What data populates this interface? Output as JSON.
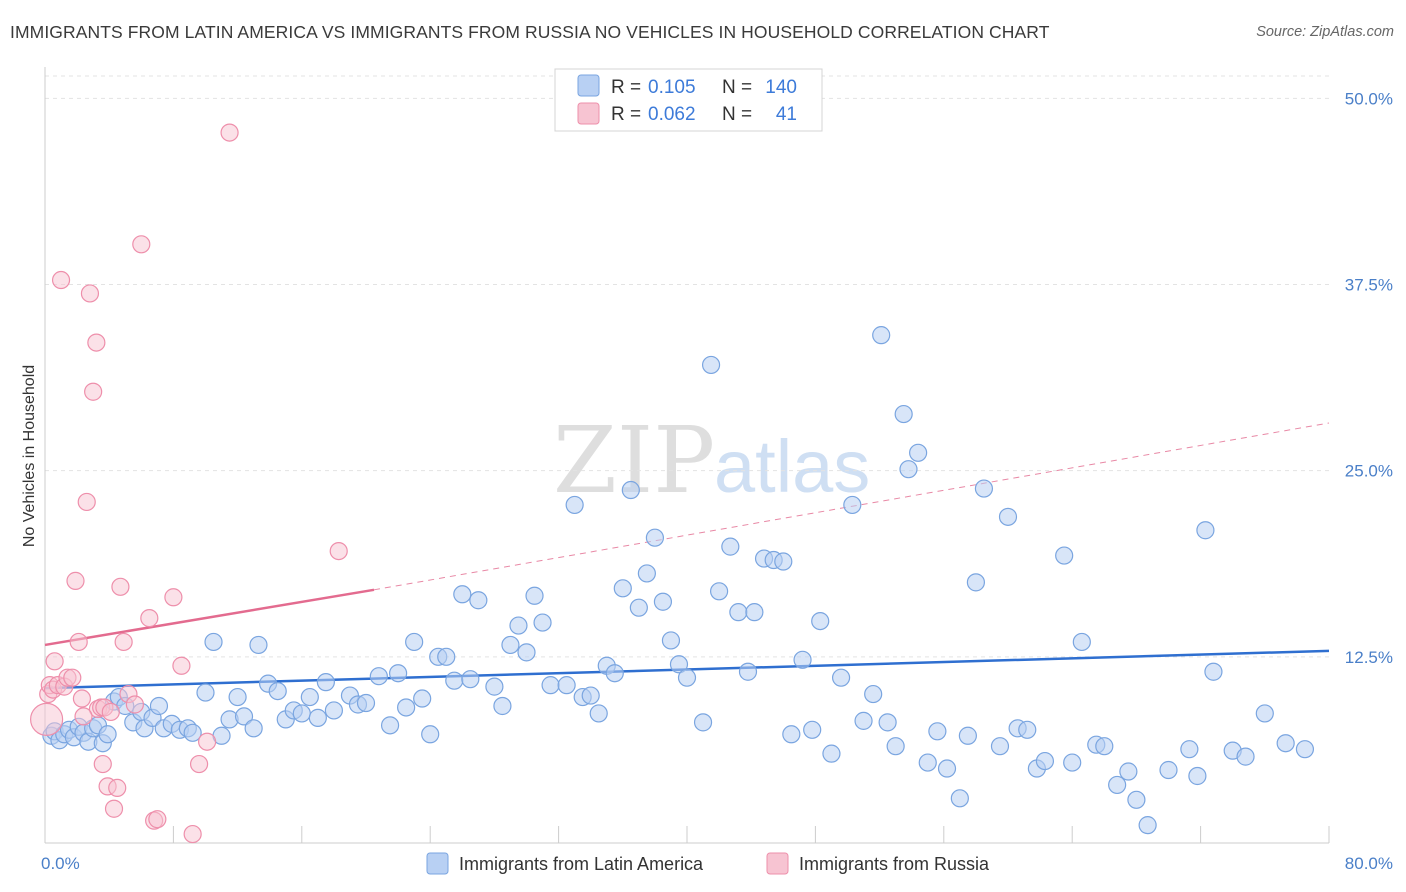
{
  "title": "IMMIGRANTS FROM LATIN AMERICA VS IMMIGRANTS FROM RUSSIA NO VEHICLES IN HOUSEHOLD CORRELATION CHART",
  "source": "Source: ZipAtlas.com",
  "watermark": {
    "zip": "ZIP",
    "atlas": "atlas"
  },
  "colors": {
    "blue_fill": "#b8d0f3",
    "blue_stroke": "#7aa5e0",
    "blue_line": "#2f6fd0",
    "pink_fill": "#f7c4d2",
    "pink_stroke": "#ee8fab",
    "pink_line": "#e36b8f",
    "grid": "#e3e3e3",
    "tick_text": "#4a7fc8"
  },
  "legend": {
    "rows": [
      {
        "r_label": "R =",
        "r_value": "0.105",
        "n_label": "N =",
        "n_value": "140"
      },
      {
        "r_label": "R =",
        "r_value": "0.062",
        "n_label": "N =",
        "n_value": "41"
      }
    ]
  },
  "chart_data": {
    "type": "scatter",
    "title": "IMMIGRANTS FROM LATIN AMERICA VS IMMIGRANTS FROM RUSSIA NO VEHICLES IN HOUSEHOLD CORRELATION CHART",
    "xlabel": "",
    "ylabel": "No Vehicles in Household",
    "xlim": [
      0,
      80
    ],
    "ylim": [
      0,
      51.5
    ],
    "x_tick_labels": [
      "0.0%",
      "80.0%"
    ],
    "y_tick_labels": [
      "12.5%",
      "25.0%",
      "37.5%",
      "50.0%"
    ],
    "y_ticks": [
      12.5,
      25.0,
      37.5,
      50.0
    ],
    "grid": true,
    "legend_position": "top-center",
    "series": [
      {
        "name": "Immigrants from Latin America",
        "color": "#7aa5e0",
        "R": 0.105,
        "N": 140,
        "trend": {
          "x": [
            0,
            80
          ],
          "y": [
            10.4,
            12.9
          ],
          "dashed_extension": false
        },
        "points": [
          [
            0.4,
            7.2
          ],
          [
            0.6,
            7.5
          ],
          [
            0.9,
            6.9
          ],
          [
            1.2,
            7.3
          ],
          [
            1.5,
            7.6
          ],
          [
            1.8,
            7.1
          ],
          [
            2.1,
            7.8
          ],
          [
            2.4,
            7.4
          ],
          [
            2.7,
            6.8
          ],
          [
            3.0,
            7.7
          ],
          [
            3.3,
            7.9
          ],
          [
            3.6,
            6.7
          ],
          [
            3.9,
            7.3
          ],
          [
            4.3,
            9.5
          ],
          [
            4.6,
            9.8
          ],
          [
            5.0,
            9.2
          ],
          [
            5.5,
            8.1
          ],
          [
            6.0,
            8.8
          ],
          [
            6.2,
            7.7
          ],
          [
            6.7,
            8.4
          ],
          [
            7.1,
            9.2
          ],
          [
            7.4,
            7.7
          ],
          [
            7.9,
            8.0
          ],
          [
            8.4,
            7.6
          ],
          [
            8.9,
            7.7
          ],
          [
            9.2,
            7.4
          ],
          [
            10.0,
            10.1
          ],
          [
            10.5,
            13.5
          ],
          [
            11.0,
            7.2
          ],
          [
            11.5,
            8.3
          ],
          [
            12.0,
            9.8
          ],
          [
            12.4,
            8.5
          ],
          [
            13.0,
            7.7
          ],
          [
            13.3,
            13.3
          ],
          [
            13.9,
            10.7
          ],
          [
            14.5,
            10.2
          ],
          [
            15.0,
            8.3
          ],
          [
            15.5,
            8.9
          ],
          [
            16.0,
            8.7
          ],
          [
            16.5,
            9.8
          ],
          [
            17.0,
            8.4
          ],
          [
            17.5,
            10.8
          ],
          [
            18.0,
            8.9
          ],
          [
            19.0,
            9.9
          ],
          [
            19.5,
            9.3
          ],
          [
            20.0,
            9.4
          ],
          [
            20.8,
            11.2
          ],
          [
            21.5,
            7.9
          ],
          [
            22.0,
            11.4
          ],
          [
            22.5,
            9.1
          ],
          [
            23.0,
            13.5
          ],
          [
            23.5,
            9.7
          ],
          [
            24.0,
            7.3
          ],
          [
            24.5,
            12.5
          ],
          [
            25.0,
            12.5
          ],
          [
            25.5,
            10.9
          ],
          [
            26.0,
            16.7
          ],
          [
            26.5,
            11.0
          ],
          [
            27.0,
            16.3
          ],
          [
            28.0,
            10.5
          ],
          [
            28.5,
            9.2
          ],
          [
            29.0,
            13.3
          ],
          [
            29.5,
            14.6
          ],
          [
            30.0,
            12.8
          ],
          [
            30.5,
            16.6
          ],
          [
            31.0,
            14.8
          ],
          [
            31.5,
            10.6
          ],
          [
            32.5,
            10.6
          ],
          [
            33.0,
            22.7
          ],
          [
            33.5,
            9.8
          ],
          [
            34.0,
            9.9
          ],
          [
            34.5,
            8.7
          ],
          [
            35.0,
            11.9
          ],
          [
            35.5,
            11.4
          ],
          [
            36.0,
            17.1
          ],
          [
            36.5,
            23.7
          ],
          [
            37.0,
            15.8
          ],
          [
            37.5,
            18.1
          ],
          [
            38.0,
            20.5
          ],
          [
            38.5,
            16.2
          ],
          [
            39.0,
            13.6
          ],
          [
            39.5,
            12.0
          ],
          [
            40.0,
            11.1
          ],
          [
            41.0,
            8.1
          ],
          [
            41.5,
            32.1
          ],
          [
            42.0,
            16.9
          ],
          [
            42.7,
            19.9
          ],
          [
            43.2,
            15.5
          ],
          [
            43.8,
            11.5
          ],
          [
            44.2,
            15.5
          ],
          [
            44.8,
            19.1
          ],
          [
            45.4,
            19.0
          ],
          [
            46.0,
            18.9
          ],
          [
            46.5,
            7.3
          ],
          [
            47.2,
            12.3
          ],
          [
            47.8,
            7.6
          ],
          [
            48.3,
            14.9
          ],
          [
            49.0,
            6.0
          ],
          [
            49.6,
            11.1
          ],
          [
            50.3,
            22.7
          ],
          [
            51.0,
            8.2
          ],
          [
            51.6,
            10.0
          ],
          [
            52.1,
            34.1
          ],
          [
            52.5,
            8.1
          ],
          [
            53.0,
            6.5
          ],
          [
            53.5,
            28.8
          ],
          [
            53.8,
            25.1
          ],
          [
            54.4,
            26.2
          ],
          [
            55.0,
            5.4
          ],
          [
            55.6,
            7.5
          ],
          [
            56.2,
            5.0
          ],
          [
            57.0,
            3.0
          ],
          [
            57.5,
            7.2
          ],
          [
            58.0,
            17.5
          ],
          [
            58.5,
            23.8
          ],
          [
            59.5,
            6.5
          ],
          [
            60.0,
            21.9
          ],
          [
            60.6,
            7.7
          ],
          [
            61.2,
            7.6
          ],
          [
            61.8,
            5.0
          ],
          [
            62.3,
            5.5
          ],
          [
            63.5,
            19.3
          ],
          [
            64.0,
            5.4
          ],
          [
            64.6,
            13.5
          ],
          [
            65.5,
            6.6
          ],
          [
            66.0,
            6.5
          ],
          [
            66.8,
            3.9
          ],
          [
            67.5,
            4.8
          ],
          [
            68.0,
            2.9
          ],
          [
            68.7,
            1.2
          ],
          [
            70.0,
            4.9
          ],
          [
            71.3,
            6.3
          ],
          [
            71.8,
            4.5
          ],
          [
            72.3,
            21.0
          ],
          [
            72.8,
            11.5
          ],
          [
            74.0,
            6.2
          ],
          [
            74.8,
            5.8
          ],
          [
            76.0,
            8.7
          ],
          [
            77.3,
            6.7
          ],
          [
            78.5,
            6.3
          ]
        ]
      },
      {
        "name": "Immigrants from Russia",
        "color": "#ee8fab",
        "R": 0.062,
        "N": 41,
        "trend": {
          "x": [
            0,
            20.5
          ],
          "y": [
            13.3,
            17.0
          ],
          "dashed_extension": {
            "x": [
              20.5,
              80
            ],
            "y": [
              17.0,
              28.2
            ]
          }
        },
        "points": [
          [
            0.1,
            8.3
          ],
          [
            0.2,
            10.0
          ],
          [
            0.3,
            10.6
          ],
          [
            0.5,
            10.3
          ],
          [
            0.6,
            12.2
          ],
          [
            0.8,
            10.6
          ],
          [
            1.0,
            37.8
          ],
          [
            1.2,
            10.5
          ],
          [
            1.4,
            11.1
          ],
          [
            1.7,
            11.1
          ],
          [
            1.9,
            17.6
          ],
          [
            2.1,
            13.5
          ],
          [
            2.3,
            9.7
          ],
          [
            2.6,
            22.9
          ],
          [
            2.8,
            36.9
          ],
          [
            3.0,
            30.3
          ],
          [
            3.2,
            33.6
          ],
          [
            3.3,
            9.0
          ],
          [
            3.5,
            9.1
          ],
          [
            3.7,
            9.1
          ],
          [
            3.9,
            3.8
          ],
          [
            4.1,
            8.8
          ],
          [
            4.3,
            2.3
          ],
          [
            4.5,
            3.7
          ],
          [
            4.7,
            17.2
          ],
          [
            4.9,
            13.5
          ],
          [
            5.2,
            10.0
          ],
          [
            5.6,
            9.3
          ],
          [
            6.0,
            40.2
          ],
          [
            6.5,
            15.1
          ],
          [
            6.8,
            1.5
          ],
          [
            7.0,
            1.6
          ],
          [
            8.0,
            16.5
          ],
          [
            8.5,
            11.9
          ],
          [
            9.2,
            0.6
          ],
          [
            9.6,
            5.3
          ],
          [
            10.1,
            6.8
          ],
          [
            11.5,
            47.7
          ],
          [
            18.3,
            19.6
          ],
          [
            3.6,
            5.3
          ],
          [
            2.4,
            8.5
          ]
        ]
      }
    ]
  },
  "bottom_legend": [
    {
      "label": "Immigrants from Latin America"
    },
    {
      "label": "Immigrants from Russia"
    }
  ]
}
